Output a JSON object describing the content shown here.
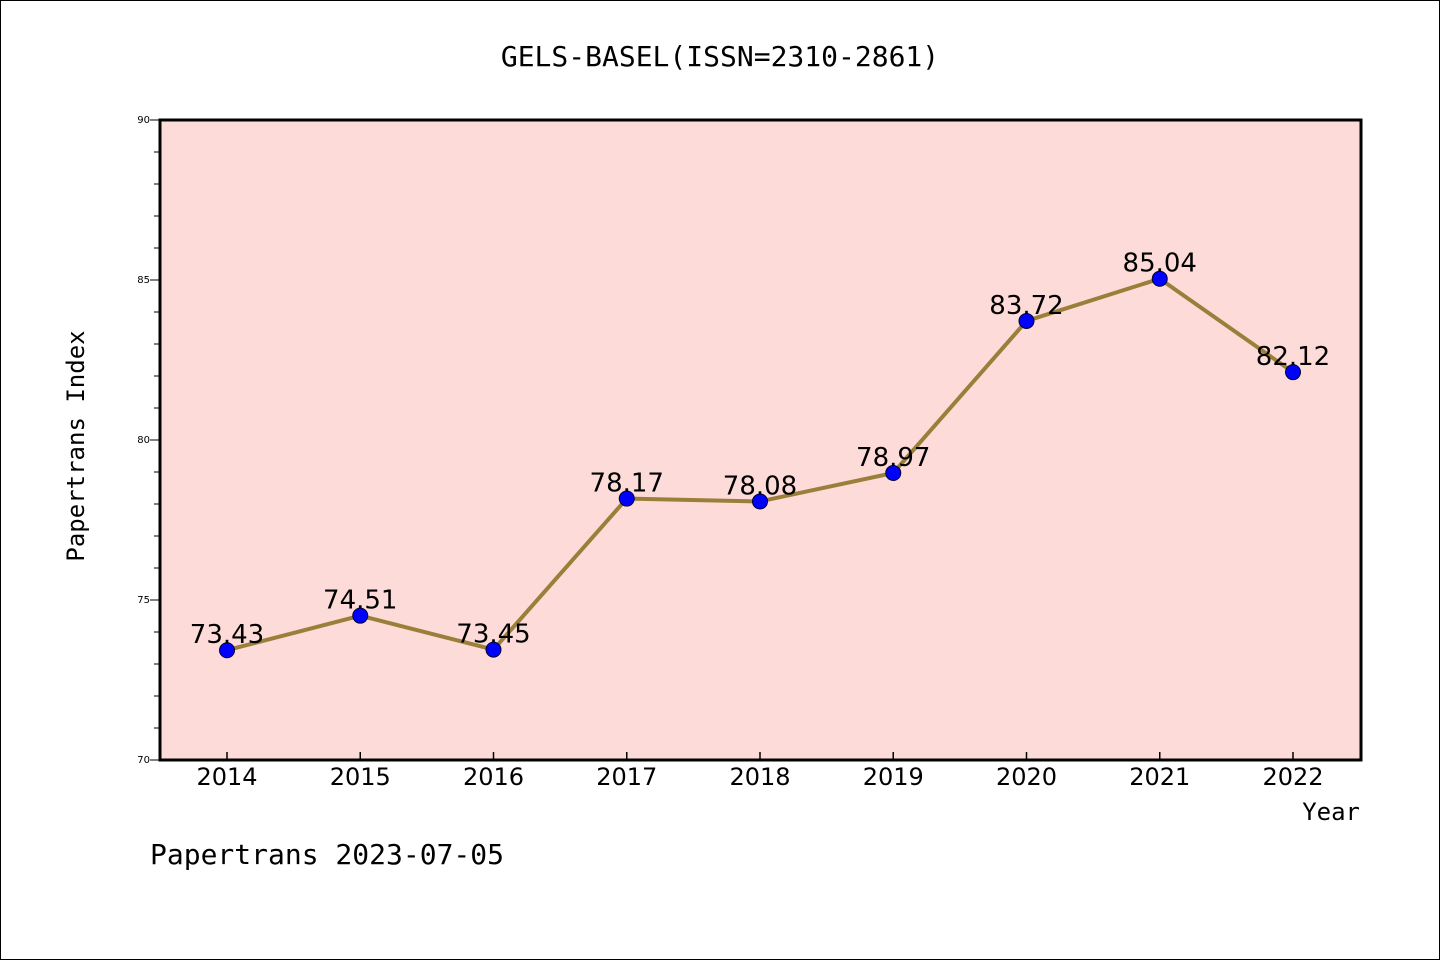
{
  "chart_data": {
    "type": "line",
    "title": "GELS-BASEL(ISSN=2310-2861)",
    "xlabel": "Year",
    "ylabel": "Papertrans Index",
    "x": [
      "2014",
      "2015",
      "2016",
      "2017",
      "2018",
      "2019",
      "2020",
      "2021",
      "2022"
    ],
    "series": [
      {
        "values": [
          73.43,
          74.51,
          73.45,
          78.17,
          78.08,
          78.97,
          83.72,
          85.04,
          82.12
        ],
        "labels": [
          "73.43",
          "74.51",
          "73.45",
          "78.17",
          "78.08",
          "78.97",
          "83.72",
          "85.04",
          "82.12"
        ]
      }
    ],
    "ylim": [
      70,
      90
    ],
    "yticks": [
      "70",
      "75",
      "80",
      "85",
      "90"
    ],
    "grid": false,
    "colors": {
      "plot_background": "#fddbd8",
      "line": "#9a7f3a",
      "marker": "#0000ff"
    }
  },
  "footer": "Papertrans 2023-07-05"
}
